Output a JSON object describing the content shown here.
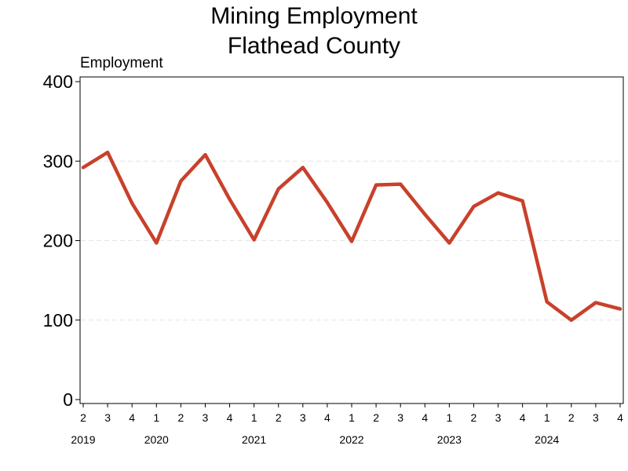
{
  "chart_data": {
    "type": "line",
    "title": [
      "Mining Employment",
      "Flathead County"
    ],
    "ylabel": "Employment",
    "xlabel": "",
    "ylim": [
      0,
      400
    ],
    "yticks": [
      0,
      100,
      200,
      300,
      400
    ],
    "grid": "horizontal dashed",
    "legend": "none",
    "line_color": "#c8412b",
    "quarter_labels": [
      "2",
      "3",
      "4",
      "1",
      "2",
      "3",
      "4",
      "1",
      "2",
      "3",
      "4",
      "1",
      "2",
      "3",
      "4",
      "1",
      "2",
      "3",
      "4",
      "1",
      "2",
      "3",
      "4"
    ],
    "year_labels": [
      {
        "label": "2019",
        "quarter_index": 0
      },
      {
        "label": "2020",
        "quarter_index": 3
      },
      {
        "label": "2021",
        "quarter_index": 7
      },
      {
        "label": "2022",
        "quarter_index": 11
      },
      {
        "label": "2023",
        "quarter_index": 15
      },
      {
        "label": "2024",
        "quarter_index": 19
      }
    ],
    "values": [
      292,
      311,
      247,
      197,
      275,
      308,
      252,
      201,
      265,
      292,
      248,
      199,
      270,
      271,
      233,
      197,
      243,
      260,
      250,
      123,
      100,
      122,
      114
    ]
  }
}
